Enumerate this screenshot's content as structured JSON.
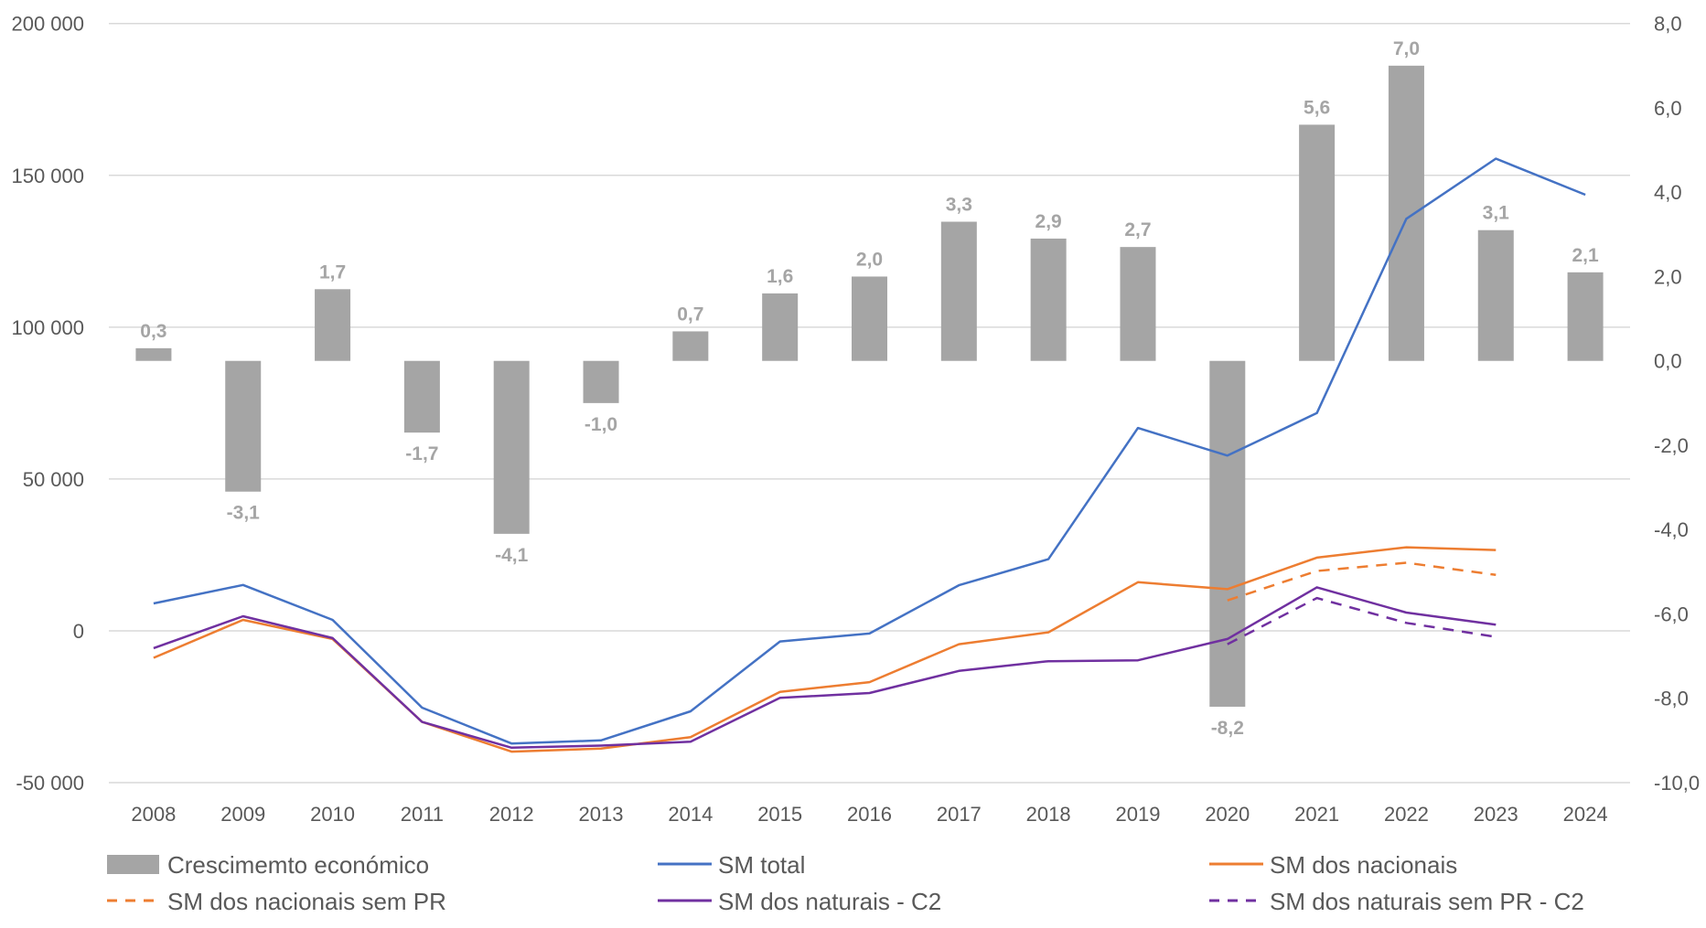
{
  "chart_data": {
    "type": "bar+line",
    "title": "",
    "categories": [
      "2008",
      "2009",
      "2010",
      "2011",
      "2012",
      "2013",
      "2014",
      "2015",
      "2016",
      "2017",
      "2018",
      "2019",
      "2020",
      "2021",
      "2022",
      "2023",
      "2024"
    ],
    "y_left": {
      "range": [
        -50000,
        200000
      ],
      "ticks": [
        200000,
        150000,
        100000,
        50000,
        0,
        -50000
      ],
      "tick_labels": [
        "200 000",
        "150 000",
        "100 000",
        "50 000",
        "0",
        "-50 000"
      ]
    },
    "y_right": {
      "range": [
        -10,
        8
      ],
      "ticks": [
        8,
        6,
        4,
        2,
        0,
        -2,
        -4,
        -6,
        -8,
        -10
      ],
      "tick_labels": [
        "8,0",
        "6,0",
        "4,0",
        "2,0",
        "0,0",
        "-2,0",
        "-4,0",
        "-6,0",
        "-8,0",
        "-10,0"
      ]
    },
    "grid": true,
    "legend_position": "bottom",
    "series": [
      {
        "name": "Crescimemto económico",
        "type": "bar",
        "axis": "right",
        "color": "#a5a5a5",
        "values": [
          0.3,
          -3.1,
          1.7,
          -1.7,
          -4.1,
          -1.0,
          0.7,
          1.6,
          2.0,
          3.3,
          2.9,
          2.7,
          -8.2,
          5.6,
          7.0,
          3.1,
          2.1
        ],
        "labels": [
          "0,3",
          "-3,1",
          "1,7",
          "-1,7",
          "-4,1",
          "-1,0",
          "0,7",
          "1,6",
          "2,0",
          "3,3",
          "2,9",
          "2,7",
          "-8,2",
          "5,6",
          "7,0",
          "3,1",
          "2,1"
        ]
      },
      {
        "name": "SM total",
        "type": "line",
        "axis": "left",
        "color": "#4472c4",
        "dash": false,
        "values": [
          9000,
          15100,
          3600,
          -25300,
          -37100,
          -36100,
          -26500,
          -3500,
          -900,
          15000,
          23600,
          66800,
          57700,
          71700,
          135700,
          155500,
          143600
        ]
      },
      {
        "name": "SM dos nacionais",
        "type": "line",
        "axis": "left",
        "color": "#ed7d31",
        "dash": false,
        "values": [
          -8900,
          3600,
          -2700,
          -30000,
          -39800,
          -38800,
          -35000,
          -20100,
          -16900,
          -4400,
          -500,
          16000,
          13700,
          24100,
          27500,
          26600,
          null
        ]
      },
      {
        "name": "SM dos nacionais sem PR",
        "type": "line",
        "axis": "left",
        "color": "#ed7d31",
        "dash": true,
        "values": [
          null,
          null,
          null,
          null,
          null,
          null,
          null,
          null,
          null,
          null,
          null,
          null,
          10000,
          19700,
          22400,
          18400,
          null
        ]
      },
      {
        "name": "SM dos naturais - C2",
        "type": "line",
        "axis": "left",
        "color": "#7030a0",
        "dash": false,
        "values": [
          -5700,
          4800,
          -2400,
          -30000,
          -38500,
          -37800,
          -36500,
          -22100,
          -20500,
          -13200,
          -10000,
          -9700,
          -2700,
          14300,
          6000,
          2000,
          null
        ]
      },
      {
        "name": "SM dos naturais sem PR - C2",
        "type": "line",
        "axis": "left",
        "color": "#7030a0",
        "dash": true,
        "values": [
          null,
          null,
          null,
          null,
          null,
          null,
          null,
          null,
          null,
          null,
          null,
          null,
          -4400,
          10800,
          2600,
          -2000,
          null
        ]
      }
    ]
  }
}
